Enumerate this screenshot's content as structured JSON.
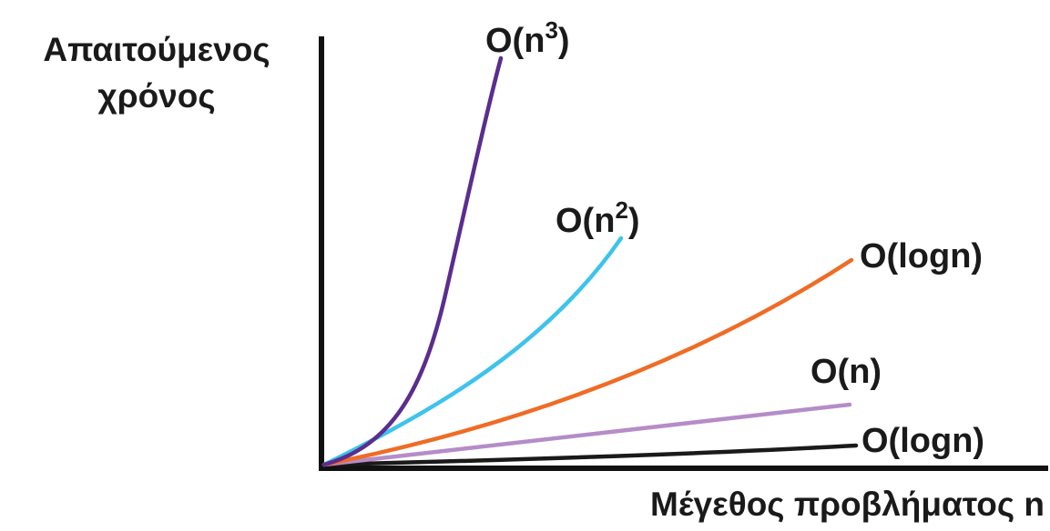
{
  "axes": {
    "y_title_line1": "Απαιτούμενος",
    "y_title_line2": "χρόνος",
    "x_title": "Μέγεθος προβλήματος n"
  },
  "curves": [
    {
      "id": "cubic",
      "label_base": "O(n",
      "label_sup": "3",
      "label_tail": ")",
      "color": "#5b2d8e"
    },
    {
      "id": "quadratic",
      "label_base": "O(n",
      "label_sup": "2",
      "label_tail": ")",
      "color": "#3ec3ec"
    },
    {
      "id": "nlogn",
      "label": "O(logn)",
      "color": "#ef6c25"
    },
    {
      "id": "linear",
      "label": "O(n)",
      "color": "#b58cc8"
    },
    {
      "id": "logarithmic",
      "label": "O(logn)",
      "color": "#1a1a1a"
    }
  ]
}
